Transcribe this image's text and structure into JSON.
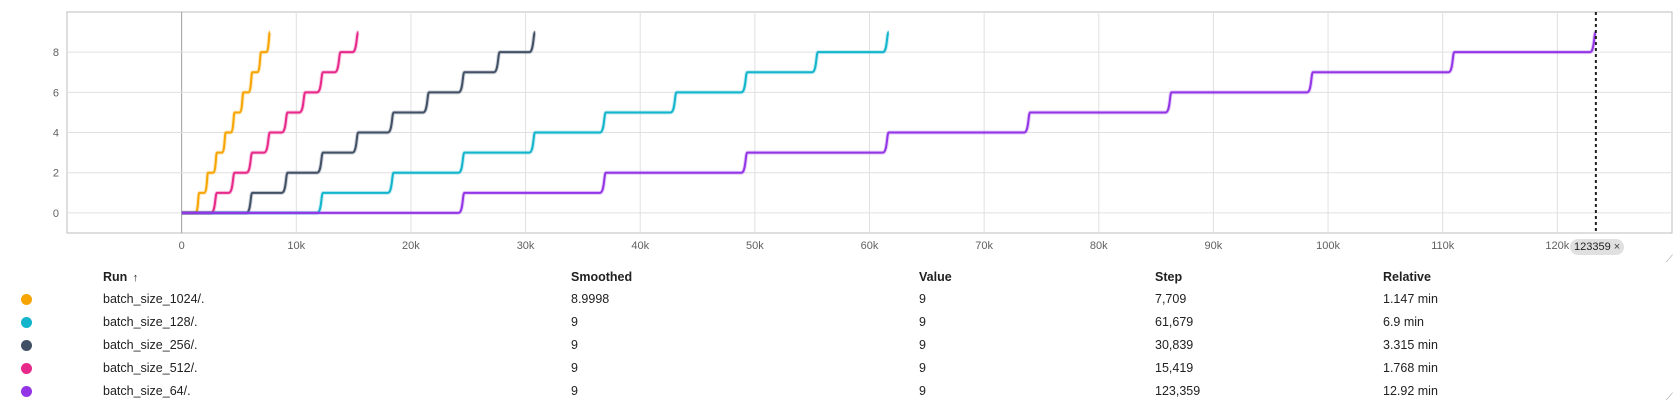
{
  "chart_data": {
    "type": "line",
    "xlim": [
      -10000,
      130000
    ],
    "ylim": [
      -1,
      10
    ],
    "x_ticks": [
      0,
      10000,
      20000,
      30000,
      40000,
      50000,
      60000,
      70000,
      80000,
      90000,
      100000,
      110000,
      120000
    ],
    "x_tick_labels": [
      "0",
      "10k",
      "20k",
      "30k",
      "40k",
      "50k",
      "60k",
      "70k",
      "80k",
      "90k",
      "100k",
      "110k",
      "120k"
    ],
    "y_ticks": [
      0,
      2,
      4,
      6,
      8
    ],
    "y_tick_labels": [
      "0",
      "2",
      "4",
      "6",
      "8"
    ],
    "grid": true,
    "cursor_step": 123359,
    "series": [
      {
        "name": "batch_size_1024/.",
        "color": "#f6a503",
        "x": [
          0,
          771,
          1542,
          2313,
          3084,
          3854,
          4625,
          5396,
          6167,
          6938,
          7709
        ],
        "y": [
          0,
          0,
          1,
          2,
          3,
          4,
          5,
          6,
          7,
          8,
          9
        ]
      },
      {
        "name": "batch_size_512/.",
        "color": "#e7298a",
        "x": [
          0,
          1542,
          3084,
          4626,
          6168,
          7709,
          9251,
          10793,
          12335,
          13877,
          15419
        ],
        "y": [
          0,
          0,
          1,
          2,
          3,
          4,
          5,
          6,
          7,
          8,
          9
        ]
      },
      {
        "name": "batch_size_256/.",
        "color": "#425066",
        "x": [
          0,
          3084,
          6168,
          9252,
          12336,
          15419,
          18503,
          21587,
          24671,
          27755,
          30839
        ],
        "y": [
          0,
          0,
          1,
          2,
          3,
          4,
          5,
          6,
          7,
          8,
          9
        ]
      },
      {
        "name": "batch_size_128/.",
        "color": "#12b5cb",
        "x": [
          0,
          6168,
          12336,
          18504,
          24672,
          30840,
          37007,
          43175,
          49343,
          55511,
          61679
        ],
        "y": [
          0,
          0,
          1,
          2,
          3,
          4,
          5,
          6,
          7,
          8,
          9
        ]
      },
      {
        "name": "batch_size_64/.",
        "color": "#9334e6",
        "x": [
          0,
          12336,
          24672,
          37008,
          49344,
          61680,
          74015,
          86351,
          98687,
          111023,
          123359
        ],
        "y": [
          0,
          0,
          1,
          2,
          3,
          4,
          5,
          6,
          7,
          8,
          9
        ]
      }
    ]
  },
  "cursor_badge": {
    "label": "123359",
    "close": "×"
  },
  "table": {
    "headers": {
      "run": "Run",
      "sort_icon": "↑",
      "smoothed": "Smoothed",
      "value": "Value",
      "step": "Step",
      "relative": "Relative"
    },
    "rows": [
      {
        "color": "#f6a503",
        "run": "batch_size_1024/.",
        "smoothed": "8.9998",
        "value": "9",
        "step": "7,709",
        "relative": "1.147 min"
      },
      {
        "color": "#12b5cb",
        "run": "batch_size_128/.",
        "smoothed": "9",
        "value": "9",
        "step": "61,679",
        "relative": "6.9 min"
      },
      {
        "color": "#425066",
        "run": "batch_size_256/.",
        "smoothed": "9",
        "value": "9",
        "step": "30,839",
        "relative": "3.315 min"
      },
      {
        "color": "#e7298a",
        "run": "batch_size_512/.",
        "smoothed": "9",
        "value": "9",
        "step": "15,419",
        "relative": "1.768 min"
      },
      {
        "color": "#9334e6",
        "run": "batch_size_64/.",
        "smoothed": "9",
        "value": "9",
        "step": "123,359",
        "relative": "12.92 min"
      }
    ]
  }
}
